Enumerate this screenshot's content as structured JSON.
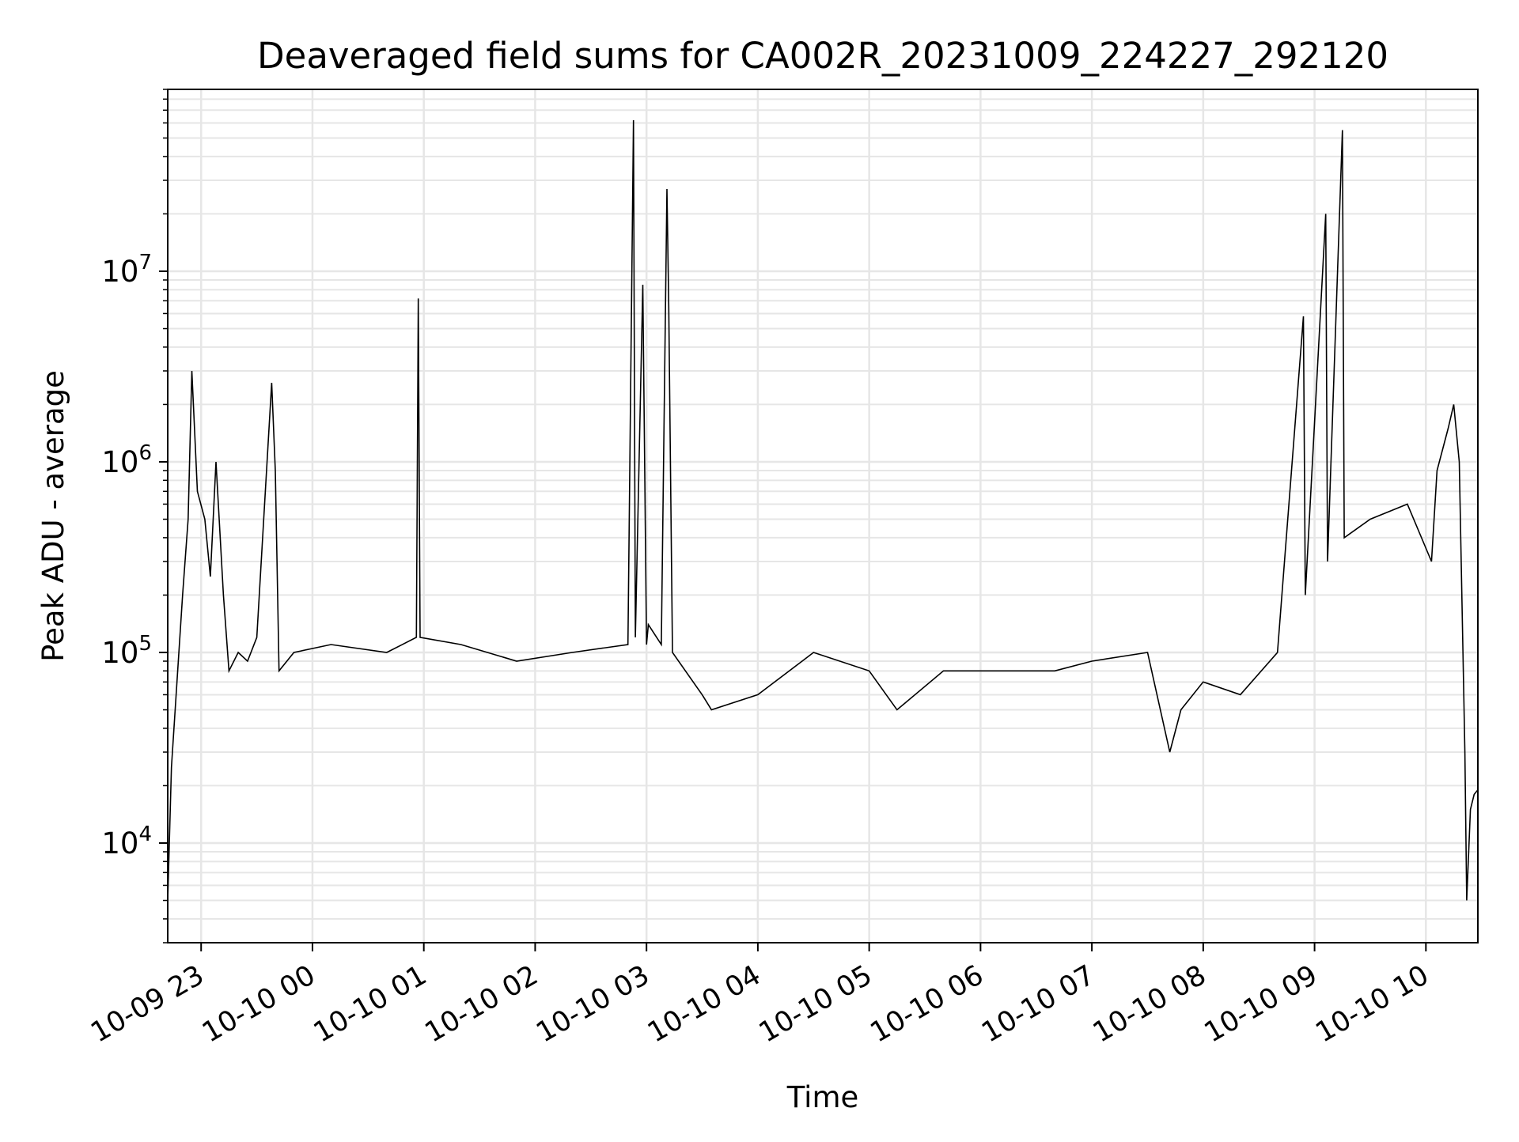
{
  "chart_data": {
    "type": "line",
    "title": "Deaveraged field sums for CA002R_20231009_224227_292120",
    "xlabel": "Time",
    "ylabel": "Peak ADU - average",
    "yscale": "log",
    "ylim": [
      3000,
      90000000
    ],
    "xlim": [
      "2023-10-09 22:42",
      "2023-10-10 10:28"
    ],
    "grid": true,
    "grid_color": "#e6e6e6",
    "line_color": "#000000",
    "x_ticks": [
      {
        "t": "2023-10-09 23:00",
        "label": "10-09 23"
      },
      {
        "t": "2023-10-10 00:00",
        "label": "10-10 00"
      },
      {
        "t": "2023-10-10 01:00",
        "label": "10-10 01"
      },
      {
        "t": "2023-10-10 02:00",
        "label": "10-10 02"
      },
      {
        "t": "2023-10-10 03:00",
        "label": "10-10 03"
      },
      {
        "t": "2023-10-10 04:00",
        "label": "10-10 04"
      },
      {
        "t": "2023-10-10 05:00",
        "label": "10-10 05"
      },
      {
        "t": "2023-10-10 06:00",
        "label": "10-10 06"
      },
      {
        "t": "2023-10-10 07:00",
        "label": "10-10 07"
      },
      {
        "t": "2023-10-10 08:00",
        "label": "10-10 08"
      },
      {
        "t": "2023-10-10 09:00",
        "label": "10-10 09"
      },
      {
        "t": "2023-10-10 10:00",
        "label": "10-10 10"
      }
    ],
    "y_ticks": [
      {
        "value": 10000,
        "base": "10",
        "exp": "4"
      },
      {
        "value": 100000,
        "base": "10",
        "exp": "5"
      },
      {
        "value": 1000000,
        "base": "10",
        "exp": "6"
      },
      {
        "value": 10000000,
        "base": "10",
        "exp": "7"
      }
    ],
    "series": [
      {
        "x": [
          "2023-10-09 22:42",
          "2023-10-09 22:44",
          "2023-10-09 22:46",
          "2023-10-09 22:50",
          "2023-10-09 22:53",
          "2023-10-09 22:55",
          "2023-10-09 22:58",
          "2023-10-09 23:02",
          "2023-10-09 23:05",
          "2023-10-09 23:08",
          "2023-10-09 23:12",
          "2023-10-09 23:15",
          "2023-10-09 23:20",
          "2023-10-09 23:25",
          "2023-10-09 23:30",
          "2023-10-09 23:38",
          "2023-10-09 23:40",
          "2023-10-09 23:42",
          "2023-10-09 23:50",
          "2023-10-10 00:10",
          "2023-10-10 00:40",
          "2023-10-10 00:56",
          "2023-10-10 00:57",
          "2023-10-10 00:58",
          "2023-10-10 01:20",
          "2023-10-10 01:50",
          "2023-10-10 02:20",
          "2023-10-10 02:50",
          "2023-10-10 02:53",
          "2023-10-10 02:54",
          "2023-10-10 02:58",
          "2023-10-10 03:00",
          "2023-10-10 03:01",
          "2023-10-10 03:08",
          "2023-10-10 03:11",
          "2023-10-10 03:12",
          "2023-10-10 03:14",
          "2023-10-10 03:30",
          "2023-10-10 03:35",
          "2023-10-10 04:00",
          "2023-10-10 04:30",
          "2023-10-10 05:00",
          "2023-10-10 05:15",
          "2023-10-10 05:40",
          "2023-10-10 06:10",
          "2023-10-10 06:40",
          "2023-10-10 07:00",
          "2023-10-10 07:30",
          "2023-10-10 07:42",
          "2023-10-10 07:48",
          "2023-10-10 08:00",
          "2023-10-10 08:20",
          "2023-10-10 08:40",
          "2023-10-10 08:54",
          "2023-10-10 08:55",
          "2023-10-10 09:06",
          "2023-10-10 09:07",
          "2023-10-10 09:15",
          "2023-10-10 09:16",
          "2023-10-10 09:30",
          "2023-10-10 09:50",
          "2023-10-10 10:03",
          "2023-10-10 10:06",
          "2023-10-10 10:12",
          "2023-10-10 10:15",
          "2023-10-10 10:18",
          "2023-10-10 10:21",
          "2023-10-10 10:22",
          "2023-10-10 10:24",
          "2023-10-10 10:26",
          "2023-10-10 10:28"
        ],
        "y": [
          5000,
          25000,
          50000,
          200000,
          500000,
          3000000,
          700000,
          500000,
          250000,
          1000000,
          200000,
          80000,
          100000,
          90000,
          120000,
          2600000,
          900000,
          80000,
          100000,
          110000,
          100000,
          120000,
          7200000,
          120000,
          110000,
          90000,
          100000,
          110000,
          62000000,
          120000,
          8500000,
          110000,
          140000,
          110000,
          27000000,
          6500000,
          100000,
          60000,
          50000,
          60000,
          100000,
          80000,
          50000,
          80000,
          80000,
          80000,
          90000,
          100000,
          30000,
          50000,
          70000,
          60000,
          100000,
          5800000,
          200000,
          20000000,
          300000,
          55000000,
          400000,
          500000,
          600000,
          300000,
          900000,
          1500000,
          2000000,
          1000000,
          30000,
          5000,
          15000,
          18000,
          19000
        ]
      }
    ]
  }
}
